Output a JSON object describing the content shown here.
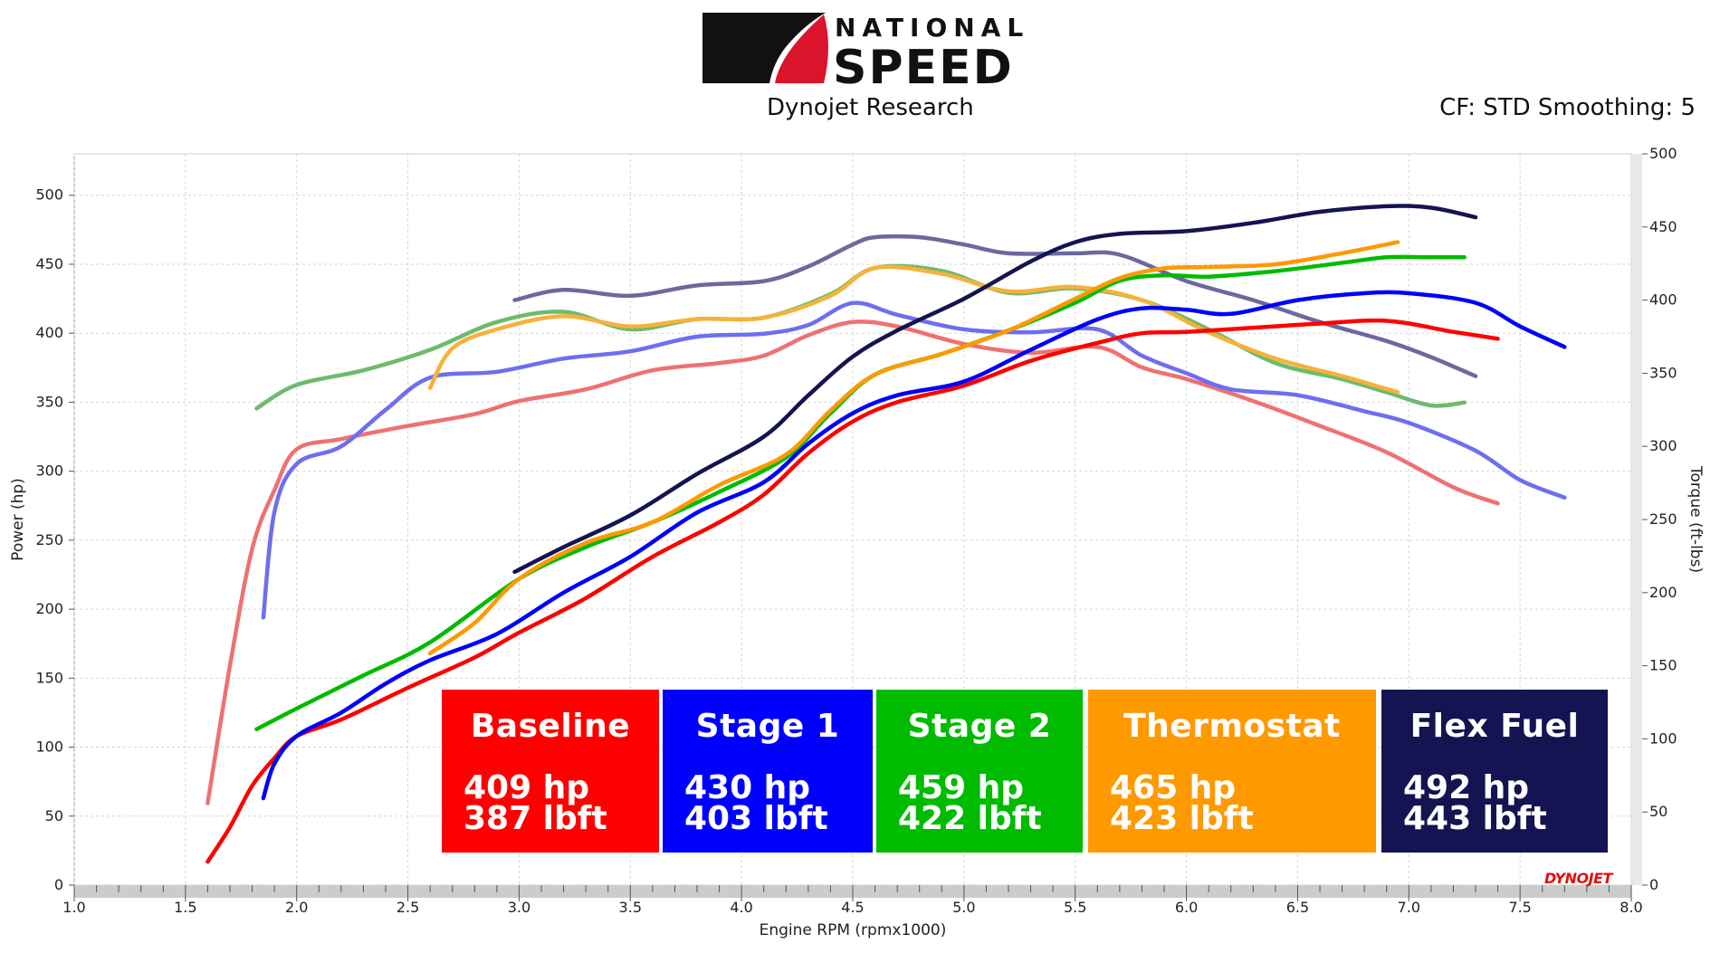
{
  "header": {
    "brand_top": "NATIONAL",
    "brand_bottom": "SPEED",
    "subtitle": "Dynojet Research",
    "settings": "CF: STD Smoothing: 5",
    "watermark": "DYNOJET"
  },
  "colors": {
    "baseline": "#ff0000",
    "stage1": "#0000ff",
    "stage2": "#00bb00",
    "thermostat": "#ff9900",
    "flexfuel": "#141452",
    "baseline_tq": "#f07070",
    "stage1_tq": "#6e6ef0",
    "stage2_tq": "#6cbb6c",
    "thermostat_tq": "#f5b23a",
    "flexfuel_tq": "#6a6a9e"
  },
  "legend": [
    {
      "name": "Baseline",
      "hp": "409 hp",
      "tq": "387 lbft",
      "color": "#ff0000"
    },
    {
      "name": "Stage 1",
      "hp": "430 hp",
      "tq": "403 lbft",
      "color": "#0000ff"
    },
    {
      "name": "Stage 2",
      "hp": "459 hp",
      "tq": "422 lbft",
      "color": "#00bb00"
    },
    {
      "name": "Thermostat",
      "hp": "465 hp",
      "tq": "423 lbft",
      "color": "#ff9900"
    },
    {
      "name": "Flex Fuel",
      "hp": "492 hp",
      "tq": "443 lbft",
      "color": "#141452"
    }
  ],
  "chart_data": {
    "type": "line",
    "xlabel": "Engine RPM (rpmx1000)",
    "ylabel": "Power (hp)",
    "y2label": "Torque (ft-lbs)",
    "xlim": [
      1.0,
      8.0
    ],
    "ylim": [
      0,
      530
    ],
    "y2lim": [
      0,
      500
    ],
    "xticks": [
      "1.0",
      "1.5",
      "2.0",
      "2.5",
      "3.0",
      "3.5",
      "4.0",
      "4.5",
      "5.0",
      "5.5",
      "6.0",
      "6.5",
      "7.0",
      "7.5",
      "8.0"
    ],
    "yticks": [
      "0",
      "50",
      "100",
      "150",
      "200",
      "250",
      "300",
      "350",
      "400",
      "450",
      "500"
    ],
    "y2ticks": [
      "0",
      "50",
      "100",
      "150",
      "200",
      "250",
      "300",
      "350",
      "400",
      "450",
      "500"
    ],
    "grid": true,
    "series": [
      {
        "name": "Baseline",
        "kind": "power",
        "axis": "left",
        "color": "#ff0000",
        "x": [
          1.6,
          1.7,
          1.8,
          1.9,
          2.0,
          2.2,
          2.5,
          2.8,
          3.0,
          3.3,
          3.6,
          3.9,
          4.1,
          4.3,
          4.5,
          4.7,
          5.0,
          5.3,
          5.6,
          5.8,
          6.0,
          6.3,
          6.6,
          6.9,
          7.2,
          7.4
        ],
        "y": [
          17,
          42,
          72,
          92,
          108,
          120,
          143,
          165,
          183,
          208,
          238,
          263,
          283,
          313,
          336,
          350,
          362,
          380,
          393,
          400,
          401,
          404,
          407,
          409,
          401,
          396
        ]
      },
      {
        "name": "Baseline",
        "kind": "torque",
        "axis": "right",
        "color": "#f07070",
        "x": [
          1.6,
          1.7,
          1.8,
          1.9,
          2.0,
          2.2,
          2.5,
          2.8,
          3.0,
          3.3,
          3.6,
          3.9,
          4.1,
          4.3,
          4.5,
          4.7,
          5.0,
          5.3,
          5.6,
          5.8,
          6.0,
          6.3,
          6.6,
          6.9,
          7.2,
          7.4
        ],
        "y": [
          56,
          150,
          230,
          270,
          298,
          305,
          314,
          322,
          331,
          339,
          352,
          357,
          362,
          376,
          385,
          382,
          370,
          364,
          368,
          354,
          346,
          331,
          314,
          296,
          272,
          261
        ]
      },
      {
        "name": "Stage 1",
        "kind": "power",
        "axis": "left",
        "color": "#0000ff",
        "x": [
          1.85,
          1.9,
          2.0,
          2.2,
          2.4,
          2.6,
          2.9,
          3.2,
          3.5,
          3.8,
          4.1,
          4.3,
          4.5,
          4.7,
          5.0,
          5.3,
          5.6,
          5.8,
          6.0,
          6.2,
          6.5,
          6.8,
          7.0,
          7.3,
          7.5,
          7.7
        ],
        "y": [
          63,
          88,
          108,
          125,
          146,
          163,
          182,
          212,
          238,
          270,
          292,
          320,
          342,
          355,
          365,
          388,
          410,
          418,
          417,
          414,
          424,
          429,
          429,
          422,
          405,
          390
        ]
      },
      {
        "name": "Stage 1",
        "kind": "torque",
        "axis": "right",
        "color": "#6e6ef0",
        "x": [
          1.85,
          1.9,
          2.0,
          2.2,
          2.4,
          2.6,
          2.9,
          3.2,
          3.5,
          3.8,
          4.1,
          4.3,
          4.5,
          4.7,
          5.0,
          5.3,
          5.6,
          5.8,
          6.0,
          6.2,
          6.5,
          6.8,
          7.0,
          7.3,
          7.5,
          7.7
        ],
        "y": [
          183,
          255,
          288,
          300,
          325,
          347,
          351,
          360,
          365,
          375,
          377,
          383,
          398,
          390,
          380,
          378,
          380,
          362,
          350,
          339,
          335,
          324,
          316,
          297,
          277,
          265
        ]
      },
      {
        "name": "Stage 2",
        "kind": "power",
        "axis": "left",
        "color": "#00bb00",
        "x": [
          1.82,
          2.0,
          2.3,
          2.6,
          3.0,
          3.3,
          3.6,
          3.9,
          4.2,
          4.4,
          4.6,
          4.9,
          5.2,
          5.5,
          5.7,
          5.9,
          6.1,
          6.4,
          6.7,
          6.9,
          7.1,
          7.25
        ],
        "y": [
          113,
          128,
          152,
          176,
          222,
          245,
          263,
          285,
          310,
          342,
          370,
          385,
          402,
          422,
          438,
          442,
          441,
          445,
          451,
          455,
          455,
          455
        ]
      },
      {
        "name": "Stage 2",
        "kind": "torque",
        "axis": "right",
        "color": "#6cbb6c",
        "x": [
          1.82,
          2.0,
          2.3,
          2.6,
          2.9,
          3.2,
          3.5,
          3.8,
          4.1,
          4.4,
          4.6,
          4.9,
          5.2,
          5.5,
          5.8,
          6.1,
          6.4,
          6.7,
          6.9,
          7.1,
          7.25
        ],
        "y": [
          326,
          342,
          352,
          366,
          385,
          392,
          380,
          387,
          388,
          404,
          422,
          420,
          405,
          408,
          400,
          380,
          357,
          346,
          337,
          328,
          330
        ]
      },
      {
        "name": "Thermostat",
        "kind": "power",
        "axis": "left",
        "color": "#ff9900",
        "x": [
          2.6,
          2.8,
          3.0,
          3.3,
          3.6,
          3.9,
          4.2,
          4.4,
          4.6,
          4.9,
          5.2,
          5.5,
          5.7,
          5.9,
          6.1,
          6.4,
          6.7,
          6.95
        ],
        "y": [
          168,
          190,
          222,
          248,
          263,
          290,
          312,
          344,
          370,
          385,
          402,
          425,
          440,
          447,
          448,
          450,
          458,
          466
        ]
      },
      {
        "name": "Thermostat",
        "kind": "torque",
        "axis": "right",
        "color": "#f5b23a",
        "x": [
          2.6,
          2.7,
          2.9,
          3.2,
          3.5,
          3.8,
          4.1,
          4.4,
          4.6,
          4.9,
          5.2,
          5.5,
          5.8,
          6.1,
          6.4,
          6.7,
          6.95
        ],
        "y": [
          340,
          367,
          380,
          389,
          382,
          387,
          388,
          403,
          422,
          418,
          406,
          409,
          400,
          378,
          360,
          348,
          337
        ]
      },
      {
        "name": "Flex Fuel",
        "kind": "power",
        "axis": "left",
        "color": "#141452",
        "x": [
          2.98,
          3.2,
          3.5,
          3.8,
          4.1,
          4.3,
          4.5,
          4.7,
          5.0,
          5.3,
          5.5,
          5.7,
          6.0,
          6.3,
          6.6,
          6.9,
          7.1,
          7.3
        ],
        "y": [
          227,
          245,
          268,
          298,
          325,
          355,
          383,
          402,
          425,
          452,
          466,
          472,
          474,
          480,
          488,
          492,
          491,
          484
        ]
      },
      {
        "name": "Flex Fuel",
        "kind": "torque",
        "axis": "right",
        "color": "#6a6a9e",
        "x": [
          2.98,
          3.2,
          3.5,
          3.8,
          4.1,
          4.3,
          4.5,
          4.6,
          4.8,
          5.0,
          5.2,
          5.5,
          5.7,
          6.0,
          6.3,
          6.6,
          6.9,
          7.1,
          7.3
        ],
        "y": [
          400,
          407,
          403,
          410,
          413,
          423,
          438,
          443,
          443,
          438,
          432,
          432,
          431,
          413,
          400,
          385,
          372,
          361,
          348
        ]
      }
    ]
  }
}
